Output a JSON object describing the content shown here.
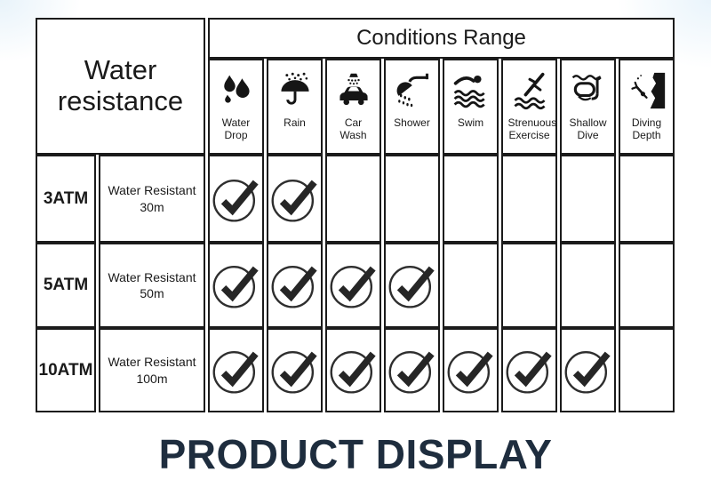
{
  "colors": {
    "border": "#1b1b1b",
    "text": "#1a1a1a",
    "title": "#1e2d3e",
    "corner_tint": "#e8f3fa",
    "check": "#2a2a2a"
  },
  "table": {
    "corner_header": "Water resistance",
    "group_header": "Conditions Range",
    "conditions": [
      {
        "label": "Water Drop",
        "icon": "water-drop-icon"
      },
      {
        "label": "Rain",
        "icon": "rain-icon"
      },
      {
        "label": "Car Wash",
        "icon": "car-wash-icon"
      },
      {
        "label": "Shower",
        "icon": "shower-icon"
      },
      {
        "label": "Swim",
        "icon": "swim-icon"
      },
      {
        "label": "Strenuous Exercise",
        "icon": "strenuous-exercise-icon"
      },
      {
        "label": "Shallow Dive",
        "icon": "shallow-dive-icon"
      },
      {
        "label": "Diving Depth",
        "icon": "diving-depth-icon"
      }
    ],
    "rows": [
      {
        "rating": "3ATM",
        "description": "Water Resistant 30m",
        "checks": [
          1,
          1,
          0,
          0,
          0,
          0,
          0,
          0
        ]
      },
      {
        "rating": "5ATM",
        "description": "Water Resistant 50m",
        "checks": [
          1,
          1,
          1,
          1,
          0,
          0,
          0,
          0
        ]
      },
      {
        "rating": "10ATM",
        "description": "Water Resistant 100m",
        "checks": [
          1,
          1,
          1,
          1,
          1,
          1,
          1,
          0
        ]
      }
    ]
  },
  "footer": {
    "title": "PRODUCT DISPLAY"
  },
  "chart_data": {
    "type": "table",
    "title": "Water resistance",
    "group_header": "Conditions Range",
    "columns": [
      "Water Drop",
      "Rain",
      "Car Wash",
      "Shower",
      "Swim",
      "Strenuous Exercise",
      "Shallow Dive",
      "Diving Depth"
    ],
    "rows": [
      {
        "rating": "3ATM",
        "description": "Water Resistant 30m",
        "suitable_for": [
          "Water Drop",
          "Rain"
        ]
      },
      {
        "rating": "5ATM",
        "description": "Water Resistant 50m",
        "suitable_for": [
          "Water Drop",
          "Rain",
          "Car Wash",
          "Shower"
        ]
      },
      {
        "rating": "10ATM",
        "description": "Water Resistant 100m",
        "suitable_for": [
          "Water Drop",
          "Rain",
          "Car Wash",
          "Shower",
          "Swim",
          "Strenuous Exercise",
          "Shallow Dive"
        ]
      }
    ],
    "footer_title": "PRODUCT DISPLAY"
  }
}
